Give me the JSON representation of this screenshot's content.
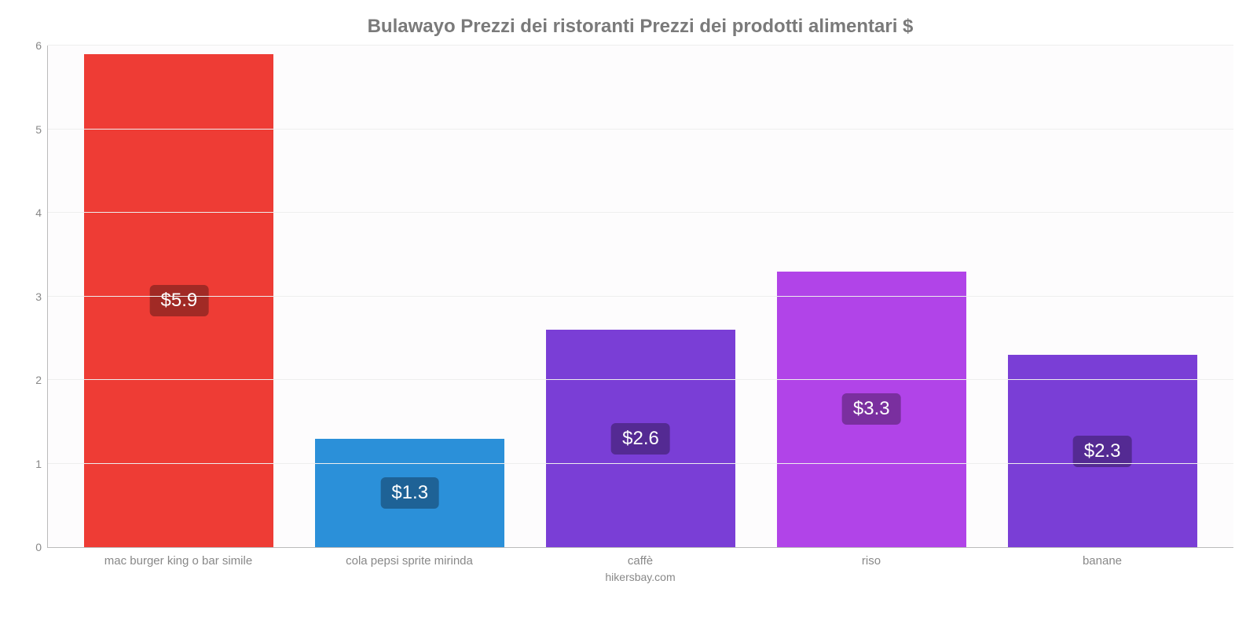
{
  "chart": {
    "type": "bar",
    "title": "Bulawayo Prezzi dei ristoranti Prezzi dei prodotti alimentari $",
    "title_fontsize": 24,
    "title_color": "#7a7a7a",
    "background_color": "#ffffff",
    "plot_background_color": "#fdfcfd",
    "grid_color": "#eeeeee",
    "axis_color": "#bbbbbb",
    "tick_label_color": "#888888",
    "tick_fontsize": 14,
    "xlabel_fontsize": 15,
    "ylim": [
      0,
      6
    ],
    "ytick_step": 1,
    "yticks": [
      0,
      1,
      2,
      3,
      4,
      5,
      6
    ],
    "bar_width": 0.82,
    "value_badge_fontsize": 24,
    "value_badge_text_color": "#ffffff",
    "value_badge_radius": 6,
    "categories": [
      "mac burger king o bar simile",
      "cola pepsi sprite mirinda",
      "caffè",
      "riso",
      "banane"
    ],
    "values": [
      5.9,
      1.3,
      2.6,
      3.3,
      2.3
    ],
    "value_labels": [
      "$5.9",
      "$1.3",
      "$2.6",
      "$3.3",
      "$2.3"
    ],
    "bar_colors": [
      "#ee3c35",
      "#2b90d9",
      "#7a3ed6",
      "#b144e8",
      "#7a3ed6"
    ],
    "badge_colors": [
      "#a12a25",
      "#1e6296",
      "#542a93",
      "#7a2f9f",
      "#542a93"
    ],
    "attribution": "hikersbay.com"
  }
}
